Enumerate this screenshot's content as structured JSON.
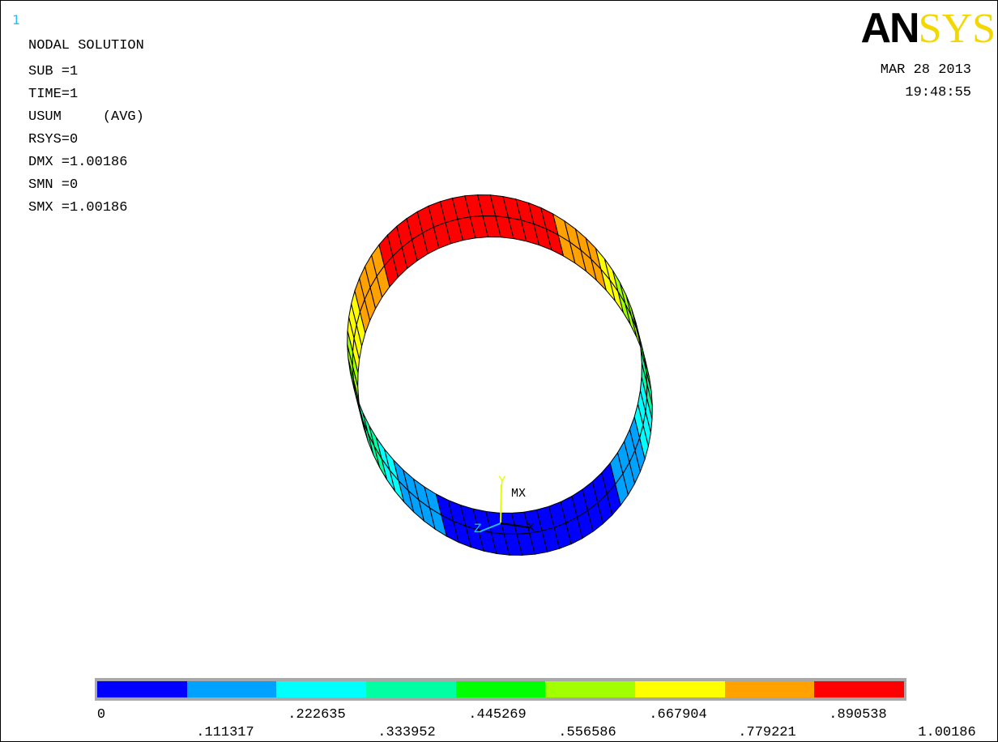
{
  "window_number": "1",
  "title": "NODAL SOLUTION",
  "info_lines": [
    "SUB =1",
    "TIME=1",
    "USUM     (AVG)",
    "RSYS=0",
    "DMX =1.00186",
    "SMN =0",
    "SMX =1.00186"
  ],
  "date": "MAR 28 2013",
  "time": "19:48:55",
  "logo": {
    "part1": "AN",
    "part2": "SYS"
  },
  "triad": {
    "y_label": "Y",
    "z_label": "Z",
    "x_label": "X",
    "mx_label": "MX"
  },
  "legend": {
    "colors": [
      "#0000ff",
      "#00a2ff",
      "#00ffff",
      "#00ffa2",
      "#00ff00",
      "#a2ff00",
      "#ffff00",
      "#ffa200",
      "#ff0000"
    ],
    "labels_top": [
      "0",
      ".222635",
      ".445269",
      ".667904",
      ".890538"
    ],
    "labels_bottom": [
      ".111317",
      ".333952",
      ".556586",
      ".779221",
      "1.00186"
    ]
  }
}
